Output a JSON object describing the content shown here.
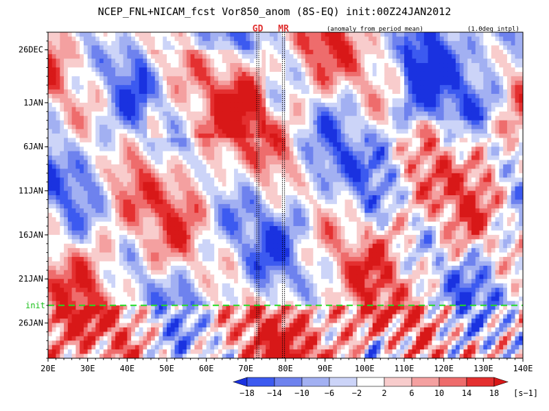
{
  "chart_data": {
    "type": "heatmap",
    "title": "NCEP_FNL+NICAM_fcst Vor850_anom (8S-EQ) init:00Z24JAN2012",
    "annotation_left": "(anomaly from period mean)",
    "annotation_right": "(1.0deg intpl)",
    "x_axis": {
      "range": [
        20,
        140
      ],
      "unit": "degE",
      "ticks": [
        20,
        30,
        40,
        50,
        60,
        70,
        80,
        90,
        100,
        110,
        120,
        130,
        140
      ],
      "tick_labels": [
        "20E",
        "30E",
        "40E",
        "50E",
        "60E",
        "70E",
        "80E",
        "90E",
        "100E",
        "110E",
        "120E",
        "130E",
        "140E"
      ]
    },
    "y_axis": {
      "direction": "time increases downward",
      "start": "2011-12-24",
      "end": "2012-01-30",
      "ticks": [
        "2011-12-26",
        "2012-01-01",
        "2012-01-06",
        "2012-01-11",
        "2012-01-16",
        "2012-01-21",
        "2012-01-26"
      ],
      "tick_labels": [
        "26DEC",
        "1JAN",
        "6JAN",
        "11JAN",
        "16JAN",
        "21JAN",
        "26JAN"
      ]
    },
    "init_line": {
      "date": "2012-01-24",
      "label": "init",
      "color": "#22dd22"
    },
    "reference_lines": [
      {
        "label": "GD",
        "lon": 73
      },
      {
        "label": "MR",
        "lon": 79.5
      }
    ],
    "colorbar": {
      "levels": [
        -18,
        -14,
        -10,
        -6,
        -2,
        2,
        6,
        10,
        14,
        18
      ],
      "labels": [
        "−18",
        "−14",
        "−10",
        "−6",
        "−2",
        "2",
        "6",
        "10",
        "14",
        "18"
      ],
      "colors": [
        "#1a32e0",
        "#3c5af0",
        "#6e82ee",
        "#a2b0f2",
        "#ccd4f8",
        "#ffffff",
        "#f8cccc",
        "#f4a0a0",
        "#ee6c6c",
        "#e43030",
        "#d81818"
      ],
      "unit": "[s−1]"
    },
    "colors": {
      "init_line": "#22dd22",
      "marker_text": "#e03030"
    }
  }
}
